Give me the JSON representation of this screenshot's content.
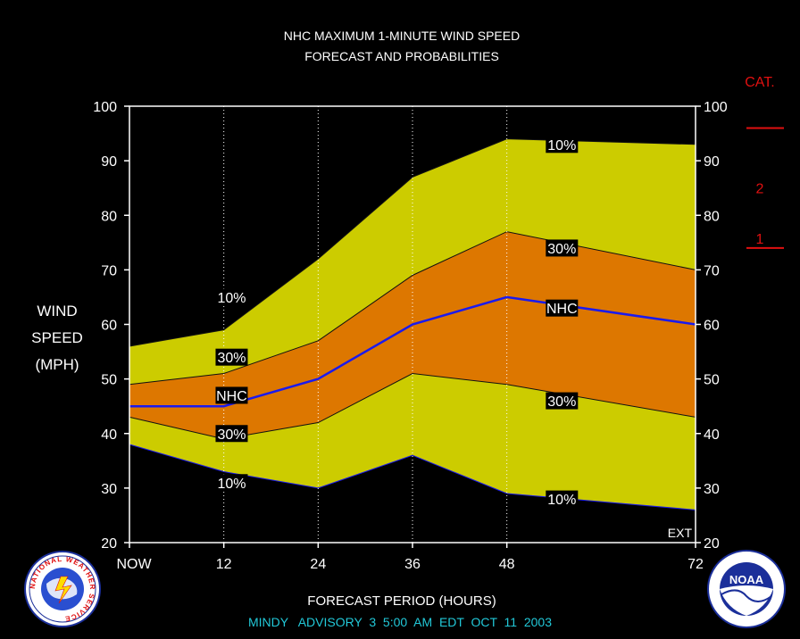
{
  "title_line1": "NHC MAXIMUM 1-MINUTE WIND SPEED",
  "title_line2": "FORECAST AND PROBABILITIES",
  "ylabel_lines": [
    "WIND",
    "SPEED",
    "(MPH)"
  ],
  "xlabel": "FORECAST PERIOD (HOURS)",
  "advisory": "MINDY   ADVISORY  3  5:00  AM  EDT  OCT  11  2003",
  "ext_label": "EXT",
  "category": {
    "title": "CAT.",
    "levels": [
      {
        "label": "2",
        "threshold": 96
      },
      {
        "label": "1",
        "threshold": 74
      }
    ]
  },
  "colors": {
    "background": "#000000",
    "band_10_90": "#cccc00",
    "band_30_70": "#dd7700",
    "nhc_line": "#1a1aee",
    "category": "#e01010",
    "advisory": "#22c8d8"
  },
  "logos": {
    "left": {
      "name": "national-weather-service-seal",
      "text": "NATIONAL WEATHER SERVICE"
    },
    "right": {
      "name": "noaa-seal",
      "text": "NOAA"
    }
  },
  "chart_data": {
    "type": "area",
    "x": [
      0,
      12,
      24,
      36,
      48,
      72
    ],
    "x_tick_labels": [
      "NOW",
      "12",
      "24",
      "36",
      "48",
      "72"
    ],
    "x_gridlines": [
      12,
      24,
      36,
      48
    ],
    "ylim": [
      20,
      100
    ],
    "yticks": [
      20,
      30,
      40,
      50,
      60,
      70,
      80,
      90,
      100
    ],
    "series": [
      {
        "key": "p10_high",
        "values": [
          56,
          59,
          72,
          87,
          94,
          93
        ]
      },
      {
        "key": "p30_high",
        "values": [
          49,
          51,
          57,
          69,
          77,
          70
        ]
      },
      {
        "key": "nhc",
        "values": [
          45,
          45,
          50,
          60,
          65,
          60
        ]
      },
      {
        "key": "p30_low",
        "values": [
          43,
          39,
          42,
          51,
          49,
          43
        ]
      },
      {
        "key": "p10_low",
        "values": [
          38,
          33,
          30,
          36,
          29,
          26
        ]
      }
    ],
    "labels": [
      {
        "text": "10%",
        "x": 13,
        "y": 65
      },
      {
        "text": "30%",
        "x": 13,
        "y": 54
      },
      {
        "text": "NHC",
        "x": 13,
        "y": 47
      },
      {
        "text": "30%",
        "x": 13,
        "y": 40
      },
      {
        "text": "10%",
        "x": 13,
        "y": 31
      },
      {
        "text": "10%",
        "x": 55,
        "y": 93
      },
      {
        "text": "30%",
        "x": 55,
        "y": 74
      },
      {
        "text": "NHC",
        "x": 55,
        "y": 63
      },
      {
        "text": "30%",
        "x": 55,
        "y": 46
      },
      {
        "text": "10%",
        "x": 55,
        "y": 28
      }
    ]
  }
}
